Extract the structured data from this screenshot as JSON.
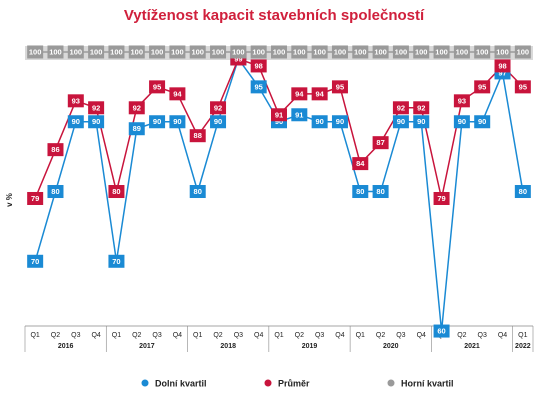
{
  "chart_data": {
    "type": "line",
    "title": "Vytíženost kapacit stavebních společností",
    "y_label": "v %",
    "category_groups": [
      {
        "name": "2016",
        "categories": [
          "Q1",
          "Q2",
          "Q3",
          "Q4"
        ]
      },
      {
        "name": "2017",
        "categories": [
          "Q1",
          "Q2",
          "Q3",
          "Q4"
        ]
      },
      {
        "name": "2018",
        "categories": [
          "Q1",
          "Q2",
          "Q3",
          "Q4"
        ]
      },
      {
        "name": "2019",
        "categories": [
          "Q1",
          "Q2",
          "Q3",
          "Q4"
        ]
      },
      {
        "name": "2020",
        "categories": [
          "Q1",
          "Q2",
          "Q3",
          "Q4"
        ]
      },
      {
        "name": "2021",
        "categories": [
          "Q1",
          "Q2",
          "Q3",
          "Q4"
        ]
      },
      {
        "name": "2022",
        "categories": [
          "Q1"
        ]
      }
    ],
    "ylim": [
      58,
      101
    ],
    "series": [
      {
        "name": "Dolní kvartil",
        "color": "#1a8ad4",
        "values": [
          70,
          80,
          90,
          90,
          70,
          89,
          90,
          90,
          80,
          90,
          99,
          95,
          90,
          91,
          90,
          90,
          80,
          80,
          90,
          90,
          60,
          90,
          90,
          97,
          80
        ]
      },
      {
        "name": "Průměr",
        "color": "#c8143c",
        "values": [
          79,
          86,
          93,
          92,
          80,
          92,
          95,
          94,
          88,
          92,
          99,
          98,
          91,
          94,
          94,
          95,
          84,
          87,
          92,
          92,
          79,
          93,
          95,
          98,
          95
        ]
      },
      {
        "name": "Horní kvartil",
        "color": "#9a9a9a",
        "values": [
          100,
          100,
          100,
          100,
          100,
          100,
          100,
          100,
          100,
          100,
          100,
          100,
          100,
          100,
          100,
          100,
          100,
          100,
          100,
          100,
          100,
          100,
          100,
          100,
          100
        ]
      }
    ]
  }
}
